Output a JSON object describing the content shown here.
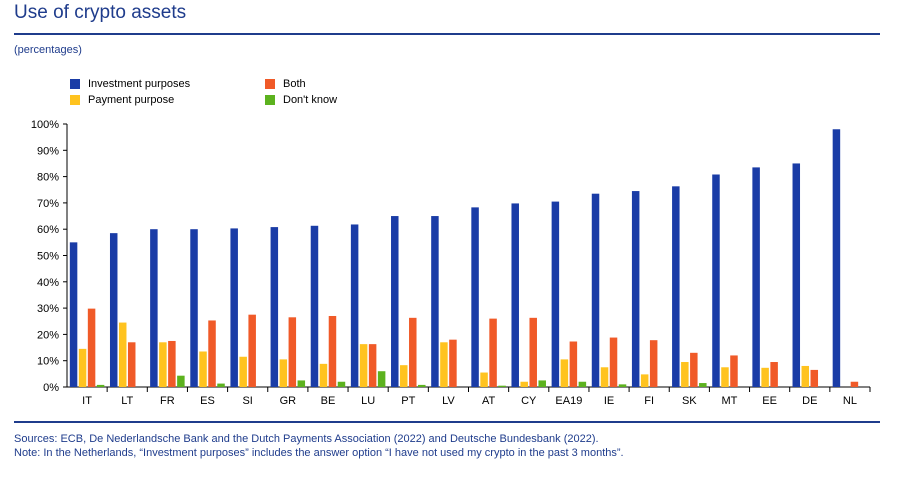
{
  "title": "Use of crypto assets",
  "subtitle": "(percentages)",
  "sources": "Sources: ECB, De Nederlandsche Bank and the Dutch Payments Association (2022) and Deutsche Bundesbank (2022).",
  "note": "Note: In the Netherlands, “Investment purposes” includes the answer option “I have not used my crypto in the past 3 months”.",
  "colors": {
    "investment": "#1a3ca6",
    "payment": "#ffc31f",
    "both": "#f05a28",
    "dontknow": "#5cb21e",
    "accent": "#1f3c8c"
  },
  "chart_data": {
    "type": "bar",
    "categories": [
      "IT",
      "LT",
      "FR",
      "ES",
      "SI",
      "GR",
      "BE",
      "LU",
      "PT",
      "LV",
      "AT",
      "CY",
      "EA19",
      "IE",
      "FI",
      "SK",
      "MT",
      "EE",
      "DE",
      "NL"
    ],
    "ylim": [
      0,
      100
    ],
    "yticks": [
      "0%",
      "10%",
      "20%",
      "30%",
      "40%",
      "50%",
      "60%",
      "70%",
      "80%",
      "90%",
      "100%"
    ],
    "legend_position": "top-left",
    "grid": false,
    "series": [
      {
        "name": "Investment purposes",
        "color_key": "investment",
        "values": [
          55,
          58.5,
          60,
          60,
          60.3,
          60.8,
          61.3,
          61.8,
          65,
          65,
          68.3,
          69.8,
          70.5,
          73.5,
          74.5,
          76.3,
          80.8,
          83.5,
          85,
          98
        ]
      },
      {
        "name": "Payment purpose",
        "color_key": "payment",
        "values": [
          14.5,
          24.5,
          17,
          13.5,
          11.5,
          10.5,
          8.8,
          16.3,
          8.3,
          17,
          5.5,
          2,
          10.5,
          7.5,
          4.8,
          9.5,
          7.5,
          7.3,
          8,
          0
        ]
      },
      {
        "name": "Both",
        "color_key": "both",
        "values": [
          29.8,
          17,
          17.5,
          25.3,
          27.5,
          26.5,
          27,
          16.3,
          26.3,
          18,
          26,
          26.3,
          17.3,
          18.8,
          17.8,
          13,
          12,
          9.5,
          6.5,
          2
        ]
      },
      {
        "name": "Don't know",
        "color_key": "dontknow",
        "values": [
          0.8,
          0,
          4.3,
          1.3,
          0,
          2.5,
          2,
          6,
          0.8,
          0,
          0.5,
          2.5,
          2,
          1,
          0,
          1.5,
          0,
          0,
          0,
          0
        ]
      }
    ]
  }
}
